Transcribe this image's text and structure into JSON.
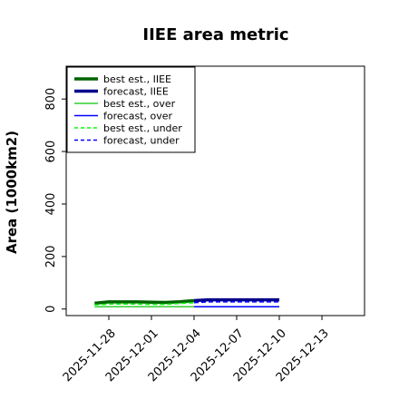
{
  "chart_data": {
    "type": "line",
    "title": "IIEE area metric",
    "xlabel": "",
    "ylabel": "Area (1000km2)",
    "ylim": [
      -25,
      925
    ],
    "yticks": [
      0,
      200,
      400,
      600,
      800
    ],
    "ytick_labels": [
      "0",
      "200",
      "400",
      "600",
      "800"
    ],
    "x_range": [
      "2025-11-25",
      "2025-12-16"
    ],
    "xticks": [
      "2025-11-28",
      "2025-12-01",
      "2025-12-04",
      "2025-12-07",
      "2025-12-10",
      "2025-12-13"
    ],
    "xtick_labels": [
      "2025-11-28",
      "2025-12-01",
      "2025-12-04",
      "2025-12-07",
      "2025-12-10",
      "2025-12-13"
    ],
    "highlighted_tick": "2025-12-04",
    "colors": {
      "highlight_tick": "#228B22",
      "iiee_best": "#006400",
      "iiee_forecast": "#00008B",
      "over_best": "#32CD32",
      "over_forecast": "#0000FF",
      "under_best": "#00FF00",
      "under_forecast": "#0000FF"
    },
    "grid": false,
    "legend_position": "upper-left",
    "series": [
      {
        "name": "best est., IIEE",
        "color": "#006400",
        "style": "solid",
        "width": 3.5,
        "x": [
          "2025-11-27",
          "2025-11-28",
          "2025-11-29",
          "2025-11-30",
          "2025-12-01",
          "2025-12-02",
          "2025-12-03",
          "2025-12-04"
        ],
        "y": [
          22,
          27,
          27,
          27,
          26,
          25,
          28,
          32
        ]
      },
      {
        "name": "forecast, IIEE",
        "color": "#00008B",
        "style": "solid",
        "width": 3.5,
        "x": [
          "2025-12-04",
          "2025-12-05",
          "2025-12-06",
          "2025-12-07",
          "2025-12-08",
          "2025-12-09",
          "2025-12-10"
        ],
        "y": [
          32,
          35,
          35,
          35,
          35,
          35,
          35
        ]
      },
      {
        "name": "best est., over",
        "color": "#32CD32",
        "style": "solid",
        "width": 1.5,
        "x": [
          "2025-11-27",
          "2025-11-28",
          "2025-11-29",
          "2025-11-30",
          "2025-12-01",
          "2025-12-02",
          "2025-12-03",
          "2025-12-04"
        ],
        "y": [
          8,
          9,
          9,
          9,
          9,
          9,
          9,
          9
        ]
      },
      {
        "name": "forecast, over",
        "color": "#0000FF",
        "style": "solid",
        "width": 1.5,
        "x": [
          "2025-12-04",
          "2025-12-05",
          "2025-12-06",
          "2025-12-07",
          "2025-12-08",
          "2025-12-09",
          "2025-12-10"
        ],
        "y": [
          9,
          9,
          9,
          9,
          9,
          9,
          9
        ]
      },
      {
        "name": "best est., under",
        "color": "#00FF00",
        "style": "dashed",
        "width": 1.5,
        "x": [
          "2025-11-27",
          "2025-11-28",
          "2025-11-29",
          "2025-11-30",
          "2025-12-01",
          "2025-12-02",
          "2025-12-03",
          "2025-12-04"
        ],
        "y": [
          15,
          19,
          19,
          19,
          18,
          18,
          21,
          24
        ]
      },
      {
        "name": "forecast, under",
        "color": "#0000FF",
        "style": "dashed",
        "width": 1.5,
        "x": [
          "2025-12-04",
          "2025-12-05",
          "2025-12-06",
          "2025-12-07",
          "2025-12-08",
          "2025-12-09",
          "2025-12-10"
        ],
        "y": [
          24,
          27,
          27,
          27,
          27,
          27,
          27
        ]
      }
    ]
  }
}
